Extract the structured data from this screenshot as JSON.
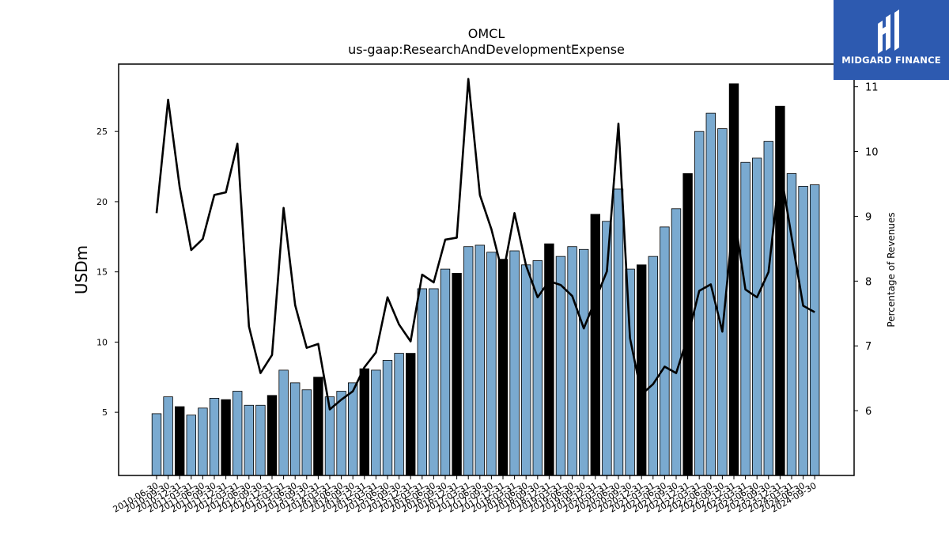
{
  "brand": {
    "name": "MIDGARD FINANCE",
    "bg_color": "#2d5ab0"
  },
  "chart_data": {
    "type": "bar",
    "title": "OMCL",
    "subtitle": "us-gaap:ResearchAndDevelopmentExpense",
    "ylabel": "USDm",
    "y2label": "Percentage of Revenues",
    "ylim": [
      0.5,
      29.8
    ],
    "y2lim": [
      5.0,
      11.35
    ],
    "yticks": [
      5,
      10,
      15,
      20,
      25
    ],
    "y2ticks": [
      6,
      7,
      8,
      9,
      10,
      11
    ],
    "grid": false,
    "colors": {
      "quarter_bar": "#7aaad0",
      "annual_bar": "#000000",
      "line": "#000000"
    },
    "categories": [
      "2010-06-30",
      "2010-09-30",
      "2010-12-31",
      "2011-03-31",
      "2011-06-30",
      "2011-09-30",
      "2011-12-31",
      "2012-03-31",
      "2012-06-30",
      "2012-09-30",
      "2012-12-31",
      "2013-03-31",
      "2013-06-30",
      "2013-09-30",
      "2013-12-31",
      "2014-03-31",
      "2014-06-30",
      "2014-09-30",
      "2014-12-31",
      "2015-03-31",
      "2015-06-30",
      "2015-09-30",
      "2015-12-31",
      "2016-03-31",
      "2016-06-30",
      "2016-09-30",
      "2016-12-31",
      "2017-03-31",
      "2017-06-30",
      "2017-09-30",
      "2017-12-31",
      "2018-03-31",
      "2018-06-30",
      "2018-09-30",
      "2018-12-31",
      "2019-03-31",
      "2019-06-30",
      "2019-09-30",
      "2019-12-31",
      "2020-03-31",
      "2020-06-30",
      "2020-09-30",
      "2020-12-31",
      "2021-03-31",
      "2021-06-30",
      "2021-09-30",
      "2021-12-31",
      "2022-03-31",
      "2022-06-30",
      "2022-09-30",
      "2022-12-31",
      "2023-03-31",
      "2023-06-30",
      "2023-09-30",
      "2023-12-31",
      "2024-03-31",
      "2024-06-30",
      "2024-09-30"
    ],
    "series": [
      {
        "kind": "bar",
        "values": [
          4.9,
          6.1,
          5.4,
          4.8,
          5.3,
          6.0,
          5.9,
          6.5,
          5.5,
          5.5,
          6.2,
          8.0,
          7.1,
          6.6,
          7.5,
          6.1,
          6.5,
          7.1,
          8.1,
          8.0,
          8.7,
          9.2,
          9.2,
          13.8,
          13.8,
          15.2,
          14.9,
          16.8,
          16.9,
          16.4,
          15.9,
          16.5,
          15.5,
          15.8,
          17.0,
          16.1,
          16.8,
          16.6,
          19.1,
          18.6,
          20.9,
          15.2,
          15.5,
          16.1,
          18.2,
          19.5,
          22.0,
          25.0,
          26.3,
          25.2,
          28.4,
          22.8,
          23.1,
          24.3,
          26.8,
          22.0,
          21.1,
          21.2
        ],
        "annual": [
          false,
          false,
          true,
          false,
          false,
          false,
          true,
          false,
          false,
          false,
          true,
          false,
          false,
          false,
          true,
          false,
          false,
          false,
          true,
          false,
          false,
          false,
          true,
          false,
          false,
          false,
          true,
          false,
          false,
          false,
          true,
          false,
          false,
          false,
          true,
          false,
          false,
          false,
          true,
          false,
          false,
          false,
          true,
          false,
          false,
          false,
          true,
          false,
          false,
          false,
          true,
          false,
          false,
          false,
          true,
          false,
          false,
          false
        ]
      },
      {
        "kind": "line",
        "axis": "right",
        "values": [
          9.05,
          10.8,
          9.45,
          8.48,
          8.65,
          9.33,
          9.37,
          10.12,
          7.3,
          6.58,
          6.86,
          9.13,
          7.63,
          6.97,
          7.03,
          6.02,
          6.17,
          6.3,
          6.67,
          6.9,
          7.75,
          7.33,
          7.07,
          8.1,
          7.98,
          8.64,
          8.67,
          11.12,
          9.33,
          8.8,
          8.1,
          9.05,
          8.24,
          7.75,
          8.0,
          7.94,
          7.77,
          7.27,
          7.71,
          8.15,
          10.43,
          7.12,
          6.25,
          6.41,
          6.68,
          6.58,
          7.14,
          7.85,
          7.95,
          7.22,
          9.05,
          7.87,
          7.75,
          8.14,
          9.75,
          8.68,
          7.62,
          7.52
        ]
      }
    ]
  }
}
